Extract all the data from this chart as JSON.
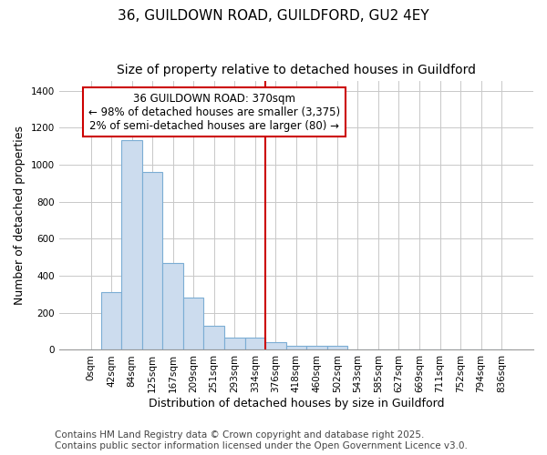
{
  "title1": "36, GUILDOWN ROAD, GUILDFORD, GU2 4EY",
  "title2": "Size of property relative to detached houses in Guildford",
  "xlabel": "Distribution of detached houses by size in Guildford",
  "ylabel": "Number of detached properties",
  "categories": [
    "0sqm",
    "42sqm",
    "84sqm",
    "125sqm",
    "167sqm",
    "209sqm",
    "251sqm",
    "293sqm",
    "334sqm",
    "376sqm",
    "418sqm",
    "460sqm",
    "502sqm",
    "543sqm",
    "585sqm",
    "627sqm",
    "669sqm",
    "711sqm",
    "752sqm",
    "794sqm",
    "836sqm"
  ],
  "values": [
    0,
    310,
    1130,
    960,
    470,
    280,
    130,
    65,
    65,
    40,
    20,
    20,
    20,
    0,
    0,
    0,
    0,
    0,
    0,
    0,
    0
  ],
  "bar_color": "#ccdcee",
  "bar_edge_color": "#7badd4",
  "grid_color": "#c8c8c8",
  "bg_color": "#ffffff",
  "red_line_x": 9,
  "red_line_color": "#cc0000",
  "annotation_text": "36 GUILDOWN ROAD: 370sqm\n← 98% of detached houses are smaller (3,375)\n2% of semi-detached houses are larger (80) →",
  "annotation_box_color": "#cc0000",
  "footer1": "Contains HM Land Registry data © Crown copyright and database right 2025.",
  "footer2": "Contains public sector information licensed under the Open Government Licence v3.0.",
  "ylim": [
    0,
    1450
  ],
  "yticks": [
    0,
    200,
    400,
    600,
    800,
    1000,
    1200,
    1400
  ],
  "title_fontsize": 11,
  "subtitle_fontsize": 10,
  "axis_label_fontsize": 9,
  "tick_fontsize": 7.5,
  "footer_fontsize": 7.5,
  "ann_fontsize": 8.5
}
